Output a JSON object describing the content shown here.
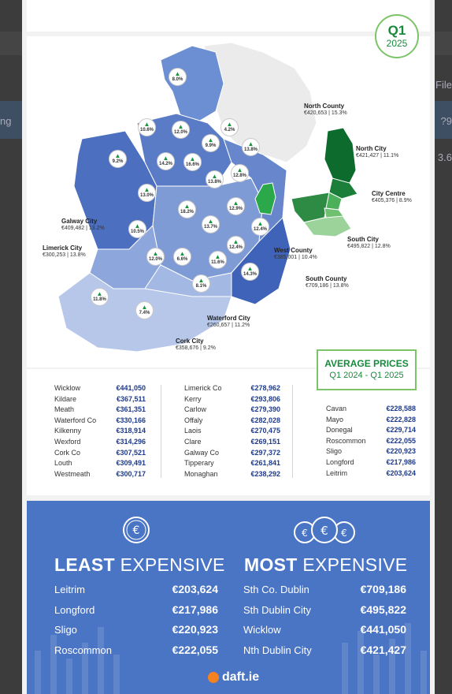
{
  "background": {
    "left_text": "ng",
    "right_texts": [
      "File",
      "?9",
      "3.6"
    ]
  },
  "badge": {
    "quarter": "Q1",
    "year": "2025"
  },
  "map_labels": [
    {
      "name": "North County",
      "detail": "€420,653 | 15.3%"
    },
    {
      "name": "North City",
      "detail": "€421,427 | 11.1%"
    },
    {
      "name": "City Centre",
      "detail": "€405,376 | 8.9%"
    },
    {
      "name": "South City",
      "detail": "€495,822 | 12.8%"
    },
    {
      "name": "West County",
      "detail": "€385,001 | 10.4%"
    },
    {
      "name": "South County",
      "detail": "€709,186 | 13.8%"
    },
    {
      "name": "Galway City",
      "detail": "€409,482 | 13.2%"
    },
    {
      "name": "Limerick City",
      "detail": "€300,253 | 13.8%"
    },
    {
      "name": "Waterford City",
      "detail": "€260,657 | 11.2%"
    },
    {
      "name": "Cork City",
      "detail": "€358,676 | 9.2%"
    }
  ],
  "pins": [
    "8.0%",
    "10.6%",
    "12.0%",
    "4.2%",
    "9.2%",
    "14.2%",
    "9.9%",
    "13.8%",
    "16.6%",
    "13.8%",
    "12.8%",
    "13.0%",
    "18.2%",
    "12.9%",
    "10.5%",
    "13.7%",
    "12.4%",
    "12.0%",
    "6.6%",
    "12.4%",
    "11.6%",
    "14.3%",
    "8.1%",
    "11.8%",
    "7.4%"
  ],
  "avg_box": {
    "title": "AVERAGE PRICES",
    "subtitle": "Q1 2024 - Q1 2025"
  },
  "price_columns": [
    [
      {
        "county": "Wicklow",
        "price": "€441,050"
      },
      {
        "county": "Kildare",
        "price": "€367,511"
      },
      {
        "county": "Meath",
        "price": "€361,351"
      },
      {
        "county": "Waterford Co",
        "price": "€330,166"
      },
      {
        "county": "Kilkenny",
        "price": "€318,914"
      },
      {
        "county": "Wexford",
        "price": "€314,296"
      },
      {
        "county": "Cork Co",
        "price": "€307,521"
      },
      {
        "county": "Louth",
        "price": "€309,491"
      },
      {
        "county": "Westmeath",
        "price": "€300,717"
      }
    ],
    [
      {
        "county": "Limerick Co",
        "price": "€278,962"
      },
      {
        "county": "Kerry",
        "price": "€293,806"
      },
      {
        "county": "Carlow",
        "price": "€279,390"
      },
      {
        "county": "Offaly",
        "price": "€282,028"
      },
      {
        "county": "Laois",
        "price": "€270,475"
      },
      {
        "county": "Clare",
        "price": "€269,151"
      },
      {
        "county": "Galway Co",
        "price": "€297,372"
      },
      {
        "county": "Tipperary",
        "price": "€261,841"
      },
      {
        "county": "Monaghan",
        "price": "€238,292"
      }
    ],
    [
      {
        "county": "Cavan",
        "price": "€228,588"
      },
      {
        "county": "Mayo",
        "price": "€222,828"
      },
      {
        "county": "Donegal",
        "price": "€229,714"
      },
      {
        "county": "Roscommon",
        "price": "€222,055"
      },
      {
        "county": "Sligo",
        "price": "€220,923"
      },
      {
        "county": "Longford",
        "price": "€217,986"
      },
      {
        "county": "Leitrim",
        "price": "€203,624"
      }
    ]
  ],
  "least": {
    "bold": "LEAST",
    "rest": " EXPENSIVE",
    "items": [
      {
        "name": "Leitrim",
        "price": "€203,624"
      },
      {
        "name": "Longford",
        "price": "€217,986"
      },
      {
        "name": "Sligo",
        "price": "€220,923"
      },
      {
        "name": "Roscommon",
        "price": "€222,055"
      }
    ]
  },
  "most": {
    "bold": "MOST",
    "rest": " EXPENSIVE",
    "items": [
      {
        "name": "Sth Co. Dublin",
        "price": "€709,186"
      },
      {
        "name": "Sth Dublin City",
        "price": "€495,822"
      },
      {
        "name": "Wicklow",
        "price": "€441,050"
      },
      {
        "name": "Nth Dublin City",
        "price": "€421,427"
      }
    ]
  },
  "logo": "daft.ie",
  "colors": {
    "green": "#178a3c",
    "blue_panel": "#4a74c4",
    "price_blue": "#1e3a8a"
  }
}
